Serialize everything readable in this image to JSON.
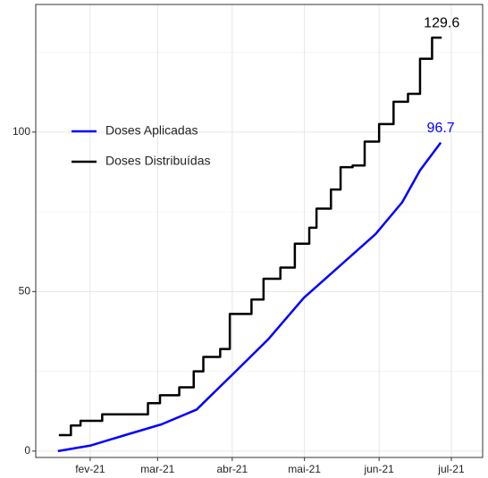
{
  "chart_data": {
    "type": "line",
    "xlim": [
      8.4,
      194
    ],
    "xticks": [
      {
        "value": 31,
        "label": "fev-21"
      },
      {
        "value": 59,
        "label": "mar-21"
      },
      {
        "value": 90,
        "label": "abr-21"
      },
      {
        "value": 120,
        "label": "mai-21"
      },
      {
        "value": 151,
        "label": "jun-21"
      },
      {
        "value": 181,
        "label": "jul-21"
      }
    ],
    "ylim": [
      -2,
      140
    ],
    "yticks": [
      0,
      50,
      100
    ],
    "yminorticks": [
      25,
      75,
      125
    ],
    "grid": true,
    "legend": "left",
    "series": [
      {
        "name": "Doses Aplicadas",
        "color": "#0000ff",
        "x": [
          17.6,
          31,
          45.5,
          60.7,
          75.2,
          89.7,
          104.9,
          119.7,
          134.6,
          149.5,
          160.6,
          168,
          176.6
        ],
        "values": [
          0,
          1.7,
          5,
          8.4,
          13,
          23.7,
          35,
          48,
          58,
          68,
          78,
          88,
          96.7
        ]
      },
      {
        "name": "Doses Distribuídas",
        "color": "#000000",
        "step": true,
        "x": [
          18,
          23,
          27,
          36,
          55,
          60,
          68,
          74,
          78,
          85,
          89,
          98,
          103,
          110,
          116,
          122,
          125,
          131,
          135,
          140,
          145,
          151,
          157,
          163,
          168,
          173,
          177
        ],
        "values": [
          5,
          8,
          9.5,
          11.5,
          15,
          17.5,
          20,
          25,
          29.5,
          32,
          43,
          47.5,
          54,
          57.5,
          65,
          70,
          76,
          82,
          89,
          89.5,
          97,
          102.5,
          109.5,
          112,
          123,
          129.6,
          129.6
        ]
      }
    ]
  }
}
